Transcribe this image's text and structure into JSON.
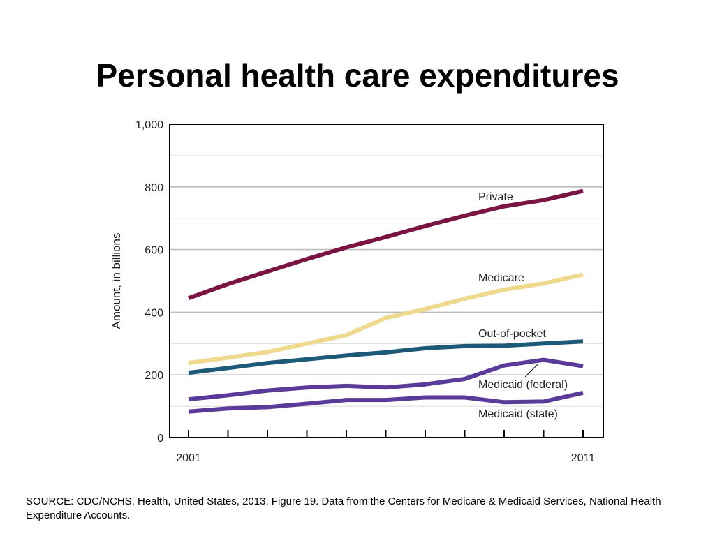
{
  "slide": {
    "title": "Personal health care expenditures",
    "source": "SOURCE: CDC/NCHS, Health, United States, 2013, Figure 19. Data from the Centers for Medicare & Medicaid Services, National Health Expenditure Accounts."
  },
  "chart_data": {
    "type": "line",
    "title": "",
    "xlabel": "",
    "ylabel": "Amount, in billions",
    "x": [
      2001,
      2002,
      2003,
      2004,
      2005,
      2006,
      2007,
      2008,
      2009,
      2010,
      2011
    ],
    "x_tick_labels": [
      "2001",
      "",
      "",
      "",
      "",
      "",
      "",
      "",
      "",
      "",
      "2011"
    ],
    "y_ticks": [
      0,
      200,
      400,
      600,
      800,
      1000
    ],
    "y_tick_labels": [
      "0",
      "200",
      "400",
      "600",
      "800",
      "1,000"
    ],
    "ylim": [
      0,
      1000
    ],
    "grid": "horizontal",
    "legend": "inline labels",
    "series": [
      {
        "name": "Private",
        "color": "#7a1443",
        "values": [
          445,
          490,
          530,
          570,
          607,
          640,
          675,
          708,
          738,
          758,
          787
        ]
      },
      {
        "name": "Medicare",
        "color": "#eed98c",
        "values": [
          238,
          255,
          273,
          300,
          327,
          382,
          410,
          443,
          472,
          492,
          520
        ]
      },
      {
        "name": "Out-of-pocket",
        "color": "#1d5a78",
        "values": [
          207,
          222,
          238,
          250,
          262,
          272,
          285,
          292,
          293,
          300,
          307
        ]
      },
      {
        "name": "Medicaid (federal)",
        "color": "#5b3b9a",
        "values": [
          122,
          135,
          150,
          160,
          165,
          160,
          170,
          187,
          230,
          248,
          228
        ]
      },
      {
        "name": "Medicaid (state)",
        "color": "#5b3b9a",
        "values": [
          83,
          93,
          97,
          108,
          120,
          120,
          128,
          128,
          113,
          115,
          143
        ]
      }
    ]
  }
}
